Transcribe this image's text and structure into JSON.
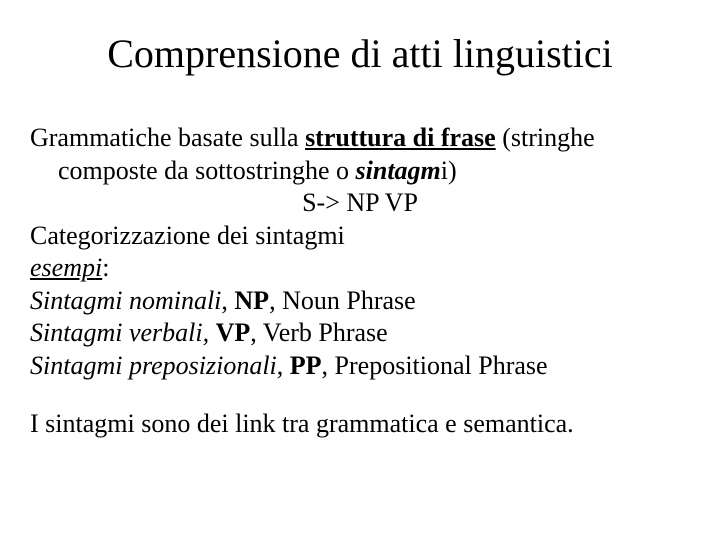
{
  "title": "Comprensione di atti linguistici",
  "line1a": "Grammatiche basate sulla ",
  "line1b": "struttura di frase",
  "line1c": " (stringhe",
  "line2a": "composte da sottostringhe o ",
  "line2b": "sintagm",
  "line2c": "i)",
  "rule": "S-> NP VP",
  "line3": "Categorizzazione dei sintagmi",
  "line4a": "esempi",
  "line4b": ":",
  "line5a": "Sintagmi nominali",
  "line5b": ", ",
  "line5c": "NP",
  "line5d": ", Noun Phrase",
  "line6a": "Sintagmi verbali,",
  "line6b": " ",
  "line6c": "VP",
  "line6d": ", Verb Phrase",
  "line7a": "Sintagmi preposizionali",
  "line7b": ", ",
  "line7c": "PP",
  "line7d": ", Prepositional Phrase",
  "line8": "I sintagmi sono dei link tra grammatica e semantica.",
  "colors": {
    "text": "#000000",
    "background": "#ffffff"
  },
  "fonts": {
    "family": "Times New Roman",
    "title_size": 40,
    "body_size": 26
  }
}
